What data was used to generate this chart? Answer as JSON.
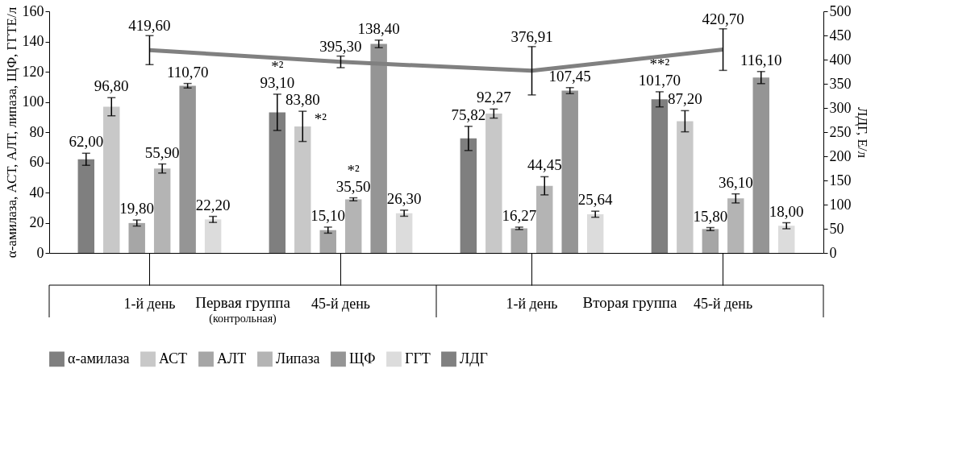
{
  "chart_data": {
    "type": "bar",
    "categories": [
      "1-й день",
      "45-й день",
      "1-й день",
      "45-й день"
    ],
    "ylabel": "α-амилаза, АСТ, АЛТ, липаза, ЩФ, ГГТЕ/л",
    "y2label": "ЛДГ, Е/л",
    "ylim": [
      0,
      160
    ],
    "yticks": [
      0,
      20,
      40,
      60,
      80,
      100,
      120,
      140,
      160
    ],
    "y2lim": [
      0,
      500
    ],
    "y2ticks": [
      0,
      50,
      100,
      150,
      200,
      250,
      300,
      350,
      400,
      450,
      500
    ],
    "series": [
      {
        "name": "α-амилаза",
        "color": "#7f7f7f",
        "values": [
          62.0,
          93.1,
          75.82,
          101.7
        ],
        "errors": [
          4,
          12,
          8,
          5
        ],
        "value_labels": [
          "62,00",
          "93,10",
          "75,82",
          "101,70"
        ]
      },
      {
        "name": "АСТ",
        "color": "#c8c8c8",
        "values": [
          96.8,
          83.8,
          92.27,
          87.2
        ],
        "errors": [
          6,
          10,
          3,
          7
        ],
        "value_labels": [
          "96,80",
          "83,80",
          "92,27",
          "87,20"
        ]
      },
      {
        "name": "АЛТ",
        "color": "#a6a6a6",
        "values": [
          19.8,
          15.1,
          16.27,
          15.8
        ],
        "errors": [
          2,
          2,
          0.8,
          1
        ],
        "value_labels": [
          "19,80",
          "15,10",
          "16,27",
          "15,80"
        ]
      },
      {
        "name": "Липаза",
        "color": "#b4b4b4",
        "values": [
          55.9,
          35.5,
          44.45,
          36.1
        ],
        "errors": [
          3,
          1,
          6,
          3
        ],
        "value_labels": [
          "55,90",
          "35,50",
          "44,45",
          "36,10"
        ]
      },
      {
        "name": "ЩФ",
        "color": "#959595",
        "values": [
          110.7,
          138.4,
          107.45,
          116.1
        ],
        "errors": [
          1.5,
          2.5,
          2,
          4
        ],
        "value_labels": [
          "110,70",
          "138,40",
          "107,45",
          "116,10"
        ]
      },
      {
        "name": "ГГТ",
        "color": "#dcdcdc",
        "values": [
          22.2,
          26.3,
          25.64,
          18.0
        ],
        "errors": [
          2,
          2,
          2,
          2
        ],
        "value_labels": [
          "22,20",
          "26,30",
          "25,64",
          "18,00"
        ]
      },
      {
        "name": "ЛДГ",
        "type": "line",
        "axis": "y2",
        "color": "#808080",
        "values": [
          419.6,
          395.3,
          376.91,
          420.7
        ],
        "errors": [
          30,
          12,
          50,
          43
        ],
        "value_labels": [
          "419,60",
          "395,30",
          "376,91",
          "420,70"
        ]
      }
    ],
    "legend": "bottom",
    "grid": false,
    "annotations": [
      "*²",
      "*²",
      "*²",
      "**²",
      "Первая группа",
      "(контрольная)",
      "Вторая группа"
    ]
  }
}
